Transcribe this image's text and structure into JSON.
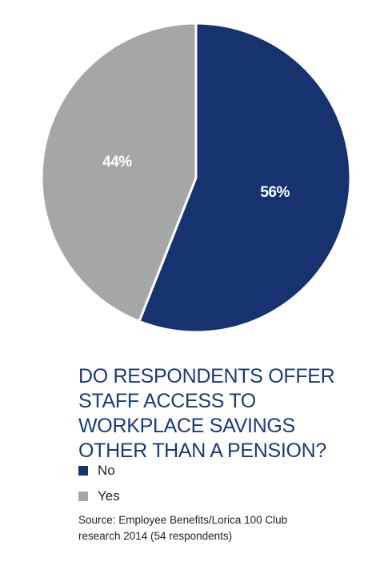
{
  "chart_data": {
    "type": "pie",
    "title": "DO RESPONDENTS OFFER STAFF ACCESS TO WORKPLACE SAVINGS OTHER THAN A PENSION?",
    "title_lines": [
      "DO RESPONDENTS OFFER",
      "STAFF ACCESS TO",
      "WORKPLACE SAVINGS",
      "OTHER THAN A PENSION?"
    ],
    "categories": [
      "No",
      "Yes"
    ],
    "values": [
      56,
      44
    ],
    "data_labels": [
      "56%",
      "44%"
    ],
    "colors": [
      "#17336f",
      "#a5a6a8"
    ],
    "legend_placement": "bottom-left",
    "start_angle_deg": 0,
    "direction": "clockwise"
  },
  "source_lines": [
    "Source: Employee Benefits/Lorica 100 Club",
    "research 2014 (54 respondents)"
  ]
}
